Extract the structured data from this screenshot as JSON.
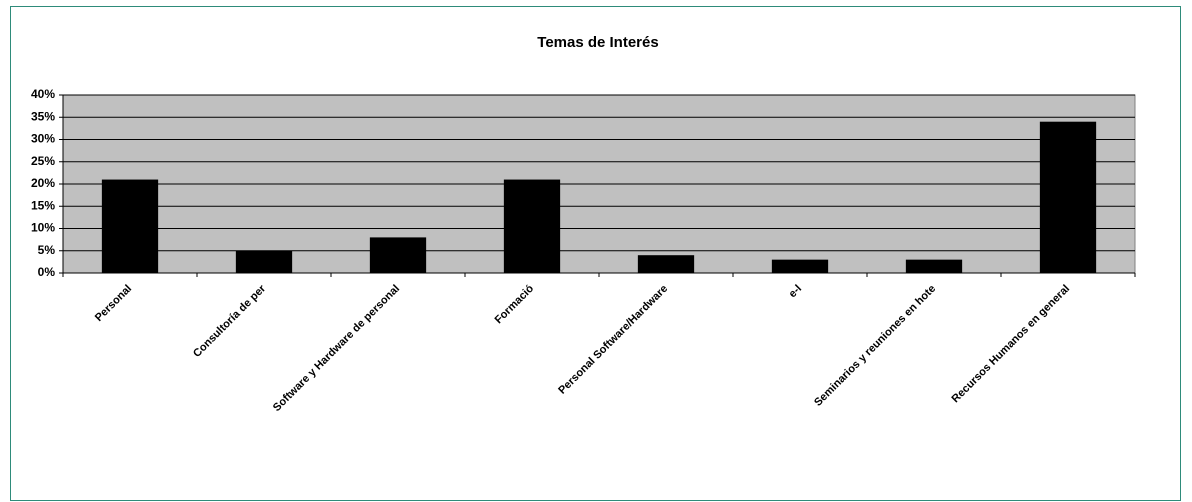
{
  "chart_data": {
    "type": "bar",
    "title": "Temas de Interés",
    "categories": [
      "Personal",
      "Consultoría de per",
      "Software y Hardware de personal",
      "Formació",
      "Personal Software/Hardware",
      "e-l",
      "Seminarios y reuniones en hote",
      "Recursos Humanos en general"
    ],
    "values": [
      21,
      5,
      8,
      21,
      4,
      3,
      3,
      34
    ],
    "color": "#000000",
    "plot_background": "#c0c0c0",
    "ylim": [
      0,
      40
    ],
    "yticks": [
      {
        "value": 0,
        "label": "0%"
      },
      {
        "value": 5,
        "label": "5%"
      },
      {
        "value": 10,
        "label": "10%"
      },
      {
        "value": 15,
        "label": "15%"
      },
      {
        "value": 20,
        "label": "20%"
      },
      {
        "value": 25,
        "label": "25%"
      },
      {
        "value": 30,
        "label": "30%"
      },
      {
        "value": 35,
        "label": "35%"
      },
      {
        "value": 40,
        "label": "40%"
      }
    ],
    "grid": true
  }
}
